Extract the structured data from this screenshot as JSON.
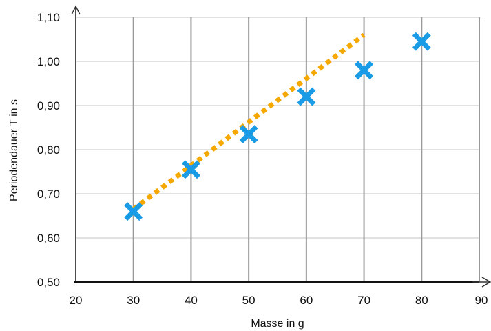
{
  "chart_data": {
    "type": "scatter",
    "title": "",
    "xlabel": "Masse in g",
    "ylabel": "Periodendauer T in s",
    "xlim": [
      20,
      90
    ],
    "ylim": [
      0.5,
      1.1
    ],
    "x_ticks": [
      "20",
      "30",
      "40",
      "50",
      "60",
      "70",
      "80",
      "90"
    ],
    "y_ticks": [
      "0,50",
      "0,60",
      "0,70",
      "0,80",
      "0,90",
      "1,00",
      "1,10"
    ],
    "grid": {
      "vertical": true,
      "horizontal": true
    },
    "series": [
      {
        "marker": "x",
        "color": "#1a9be6",
        "points": [
          {
            "x": 30,
            "y": 0.66
          },
          {
            "x": 40,
            "y": 0.755
          },
          {
            "x": 50,
            "y": 0.835
          },
          {
            "x": 60,
            "y": 0.92
          },
          {
            "x": 70,
            "y": 0.98
          },
          {
            "x": 80,
            "y": 1.045
          }
        ]
      }
    ],
    "trend_line": {
      "style": "dotted",
      "color": "#f5a800",
      "from": {
        "x": 30,
        "y": 0.665
      },
      "to": {
        "x": 70,
        "y": 1.06
      }
    }
  }
}
